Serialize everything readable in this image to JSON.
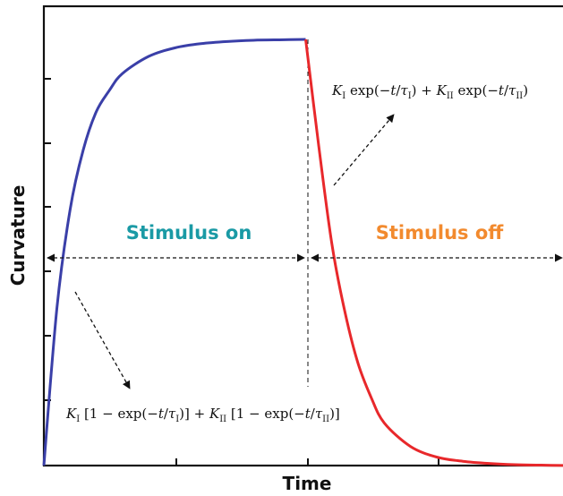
{
  "chart_data": {
    "type": "line",
    "xlabel": "Time",
    "ylabel": "Curvature",
    "xlim": [
      0,
      2
    ],
    "ylim": [
      0,
      1
    ],
    "tick_labels_shown": false,
    "grid": false,
    "stimulus_switch_x": 1.0,
    "series": [
      {
        "color": "#3a3fa8",
        "x": [
          0,
          0.05,
          0.1,
          0.15,
          0.2,
          0.25,
          0.3,
          0.4,
          0.5,
          0.6,
          0.7,
          0.8,
          0.9,
          1.0
        ],
        "y": [
          0,
          0.37,
          0.6,
          0.74,
          0.83,
          0.88,
          0.92,
          0.96,
          0.98,
          0.99,
          0.995,
          0.998,
          0.999,
          1.0
        ]
      },
      {
        "color": "#e8282b",
        "x": [
          1.0,
          1.05,
          1.1,
          1.15,
          1.2,
          1.25,
          1.3,
          1.4,
          1.5,
          1.6,
          1.7,
          1.8,
          1.9,
          2.0
        ],
        "y": [
          1.0,
          0.75,
          0.52,
          0.36,
          0.24,
          0.16,
          0.1,
          0.045,
          0.02,
          0.01,
          0.005,
          0.002,
          0.001,
          0.0
        ]
      }
    ],
    "annotations": {
      "stimulus_on": "Stimulus on",
      "stimulus_off": "Stimulus off",
      "stimulus_on_color": "#1a9aa5",
      "stimulus_off_color": "#f28a2e",
      "rise_formula": "K_I [1 − exp(−t/τ_I)] + K_II [1 − exp(−t/τ_II)]",
      "decay_formula": "K_I exp(−t/τ_I) + K_II exp(−t/τ_II)"
    }
  }
}
